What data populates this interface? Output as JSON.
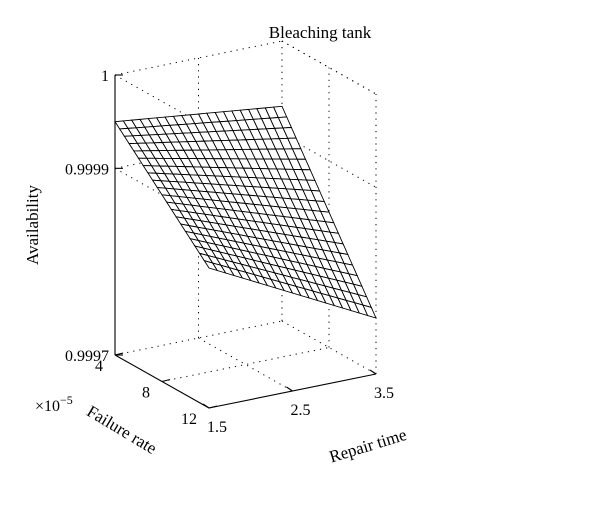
{
  "chart_data": {
    "type": "surface",
    "title": "Bleaching tank",
    "xlabel": "Repair time",
    "ylabel": "Failure rate",
    "zlabel": "Availability",
    "y_exponent": "×10^−5",
    "x_ticks": [
      "1.5",
      "2.5",
      "3.5"
    ],
    "y_ticks": [
      "4",
      "8",
      "12"
    ],
    "z_ticks": [
      "0.9997",
      "0.9999",
      "1"
    ],
    "xlim": [
      1.5,
      3.5
    ],
    "ylim": [
      4,
      12
    ],
    "zlim": [
      0.9997,
      1.0
    ],
    "grid": true,
    "surface": {
      "x_range": [
        1.5,
        3.5
      ],
      "y_range": [
        4,
        12
      ],
      "mesh_divisions": 20,
      "corner_values": {
        "x1.5_y4": 0.99995,
        "x1.5_y12": 0.99985,
        "x3.5_y4": 0.99993,
        "x3.5_y12": 0.99976
      }
    }
  }
}
